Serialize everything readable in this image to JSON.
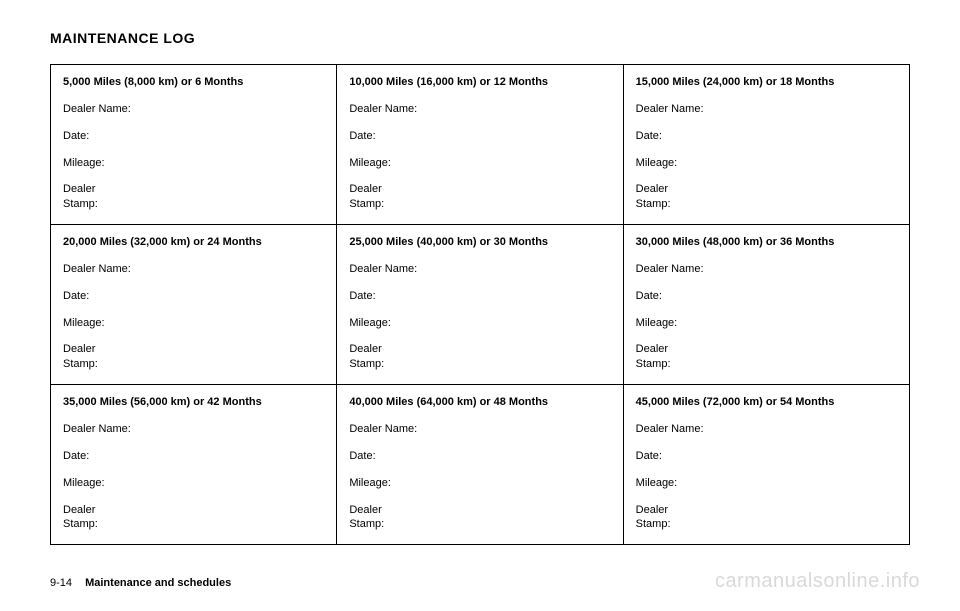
{
  "title": "MAINTENANCE LOG",
  "fields": {
    "dealerName": "Dealer Name:",
    "date": "Date:",
    "mileage": "Mileage:",
    "dealer": "Dealer",
    "stamp": "Stamp:"
  },
  "intervals": [
    [
      "5,000 Miles (8,000 km) or 6 Months",
      "10,000 Miles (16,000 km) or 12 Months",
      "15,000 Miles (24,000 km) or 18 Months"
    ],
    [
      "20,000 Miles (32,000 km) or 24 Months",
      "25,000 Miles (40,000 km) or 30 Months",
      "30,000 Miles (48,000 km) or 36 Months"
    ],
    [
      "35,000 Miles (56,000 km) or 42 Months",
      "40,000 Miles (64,000 km) or 48 Months",
      "45,000 Miles (72,000 km) or 54 Months"
    ]
  ],
  "footer": {
    "pageNum": "9-14",
    "section": "Maintenance and schedules"
  },
  "watermark": "carmanualsonline.info",
  "style": {
    "background_color": "#ffffff",
    "text_color": "#000000",
    "border_color": "#000000",
    "watermark_color": "#d9d9d9",
    "title_fontsize": 14,
    "body_fontsize": 11,
    "watermark_fontsize": 20
  }
}
